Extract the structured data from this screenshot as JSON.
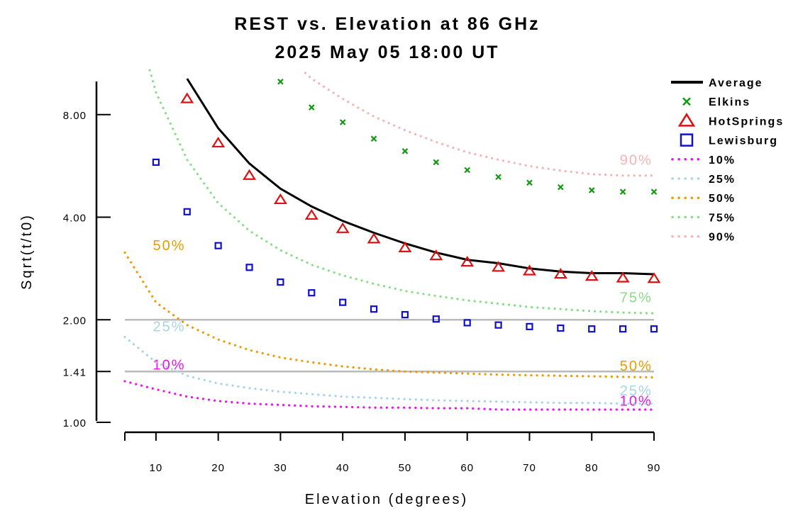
{
  "chart_data": {
    "type": "scatter",
    "title": "REST vs. Elevation at 86 GHz",
    "subtitle": "2025 May 05 18:00 UT",
    "xlabel": "Elevation (degrees)",
    "ylabel": "Sqrt(t/t0)",
    "xlim": [
      5,
      90
    ],
    "ylim": [
      1.0,
      10.6
    ],
    "yscale": "log",
    "xticks": [
      10,
      20,
      30,
      40,
      50,
      60,
      70,
      80,
      90
    ],
    "yticks": [
      1.0,
      1.41,
      2.0,
      4.0,
      8.0
    ],
    "ytick_labels": [
      "1.00",
      "1.41",
      "2.00",
      "4.00",
      "8.00"
    ],
    "reference_lines": [
      {
        "y": 2.0,
        "color": "#bbbbbb"
      },
      {
        "y": 1.41,
        "color": "#bbbbbb"
      }
    ],
    "grid": false,
    "legend_position": "right",
    "series": [
      {
        "name": "Average",
        "kind": "line",
        "color": "#000000",
        "x": [
          15,
          20,
          25,
          30,
          35,
          40,
          45,
          50,
          55,
          60,
          65,
          70,
          75,
          80,
          85,
          90
        ],
        "y": [
          10.2,
          7.3,
          5.75,
          4.85,
          4.3,
          3.9,
          3.6,
          3.35,
          3.15,
          3.0,
          2.93,
          2.83,
          2.77,
          2.74,
          2.74,
          2.72
        ]
      },
      {
        "name": "Elkins",
        "kind": "x",
        "color": "#119911",
        "x": [
          30,
          35,
          40,
          45,
          50,
          55,
          60,
          65,
          70,
          75,
          80,
          85,
          90
        ],
        "y": [
          10.0,
          8.4,
          7.6,
          6.8,
          6.25,
          5.8,
          5.5,
          5.25,
          5.05,
          4.9,
          4.8,
          4.75,
          4.75
        ]
      },
      {
        "name": "HotSprings",
        "kind": "triangle",
        "color": "#dd1111",
        "x": [
          15,
          20,
          25,
          30,
          35,
          40,
          45,
          50,
          55,
          60,
          65,
          70,
          75,
          80,
          85,
          90
        ],
        "y": [
          8.9,
          6.6,
          5.3,
          4.5,
          4.05,
          3.7,
          3.45,
          3.25,
          3.08,
          2.95,
          2.85,
          2.78,
          2.72,
          2.68,
          2.65,
          2.64
        ]
      },
      {
        "name": "Lewisburg",
        "kind": "square",
        "color": "#1111cc",
        "x": [
          10,
          15,
          20,
          25,
          30,
          35,
          40,
          45,
          50,
          55,
          60,
          65,
          70,
          75,
          80,
          85,
          90
        ],
        "y": [
          5.8,
          4.15,
          3.3,
          2.85,
          2.58,
          2.4,
          2.25,
          2.15,
          2.07,
          2.01,
          1.96,
          1.93,
          1.91,
          1.89,
          1.88,
          1.88,
          1.88
        ]
      },
      {
        "name": "10%",
        "kind": "dotted",
        "color": "#ee11ee",
        "x": [
          5,
          10,
          15,
          20,
          25,
          30,
          35,
          40,
          45,
          50,
          55,
          60,
          65,
          70,
          75,
          80,
          85,
          90
        ],
        "y": [
          1.32,
          1.25,
          1.19,
          1.155,
          1.135,
          1.125,
          1.115,
          1.11,
          1.105,
          1.105,
          1.1,
          1.1,
          1.09,
          1.09,
          1.09,
          1.09,
          1.09,
          1.09
        ],
        "curve_labels": [
          {
            "text": "10%",
            "x": 9.5,
            "y": 1.43
          },
          {
            "text": "10%",
            "x": 84.5,
            "y": 1.12
          }
        ]
      },
      {
        "name": "25%",
        "kind": "dotted",
        "color": "#aad4e6",
        "x": [
          5,
          10,
          15,
          20,
          25,
          30,
          35,
          40,
          45,
          50,
          55,
          60,
          65,
          70,
          75,
          80,
          85,
          90
        ],
        "y": [
          1.78,
          1.5,
          1.37,
          1.3,
          1.26,
          1.23,
          1.21,
          1.19,
          1.18,
          1.17,
          1.16,
          1.155,
          1.15,
          1.145,
          1.14,
          1.14,
          1.135,
          1.135
        ],
        "curve_labels": [
          {
            "text": "25%",
            "x": 9.5,
            "y": 1.85
          },
          {
            "text": "25%",
            "x": 84.5,
            "y": 1.2
          }
        ]
      },
      {
        "name": "50%",
        "kind": "dotted",
        "color": "#ee9900",
        "x": [
          5,
          10,
          15,
          20,
          25,
          30,
          35,
          40,
          45,
          50,
          55,
          60,
          65,
          70,
          75,
          80,
          85,
          90
        ],
        "y": [
          3.15,
          2.25,
          1.93,
          1.75,
          1.63,
          1.55,
          1.5,
          1.46,
          1.43,
          1.41,
          1.4,
          1.39,
          1.38,
          1.375,
          1.37,
          1.365,
          1.36,
          1.355
        ],
        "curve_labels": [
          {
            "text": "50%",
            "x": 9.5,
            "y": 3.2
          },
          {
            "text": "50%",
            "x": 84.5,
            "y": 1.42
          }
        ]
      },
      {
        "name": "75%",
        "kind": "dotted",
        "color": "#88dd88",
        "x": [
          9,
          10,
          15,
          20,
          25,
          30,
          35,
          40,
          45,
          50,
          55,
          60,
          65,
          70,
          75,
          80,
          85,
          90
        ],
        "y": [
          10.8,
          9.3,
          5.9,
          4.4,
          3.65,
          3.2,
          2.9,
          2.7,
          2.55,
          2.43,
          2.35,
          2.28,
          2.23,
          2.18,
          2.15,
          2.12,
          2.1,
          2.09
        ],
        "curve_labels": [
          {
            "text": "75%",
            "x": 84.5,
            "y": 2.25
          }
        ]
      },
      {
        "name": "90%",
        "kind": "dotted",
        "color": "#f5b3b8",
        "x": [
          34,
          35,
          40,
          45,
          50,
          55,
          60,
          65,
          70,
          75,
          80,
          85,
          90
        ],
        "y": [
          10.6,
          10.2,
          8.9,
          7.9,
          7.2,
          6.65,
          6.2,
          5.9,
          5.65,
          5.48,
          5.35,
          5.3,
          5.3
        ],
        "curve_labels": [
          {
            "text": "90%",
            "x": 84.5,
            "y": 5.7
          }
        ]
      }
    ]
  }
}
